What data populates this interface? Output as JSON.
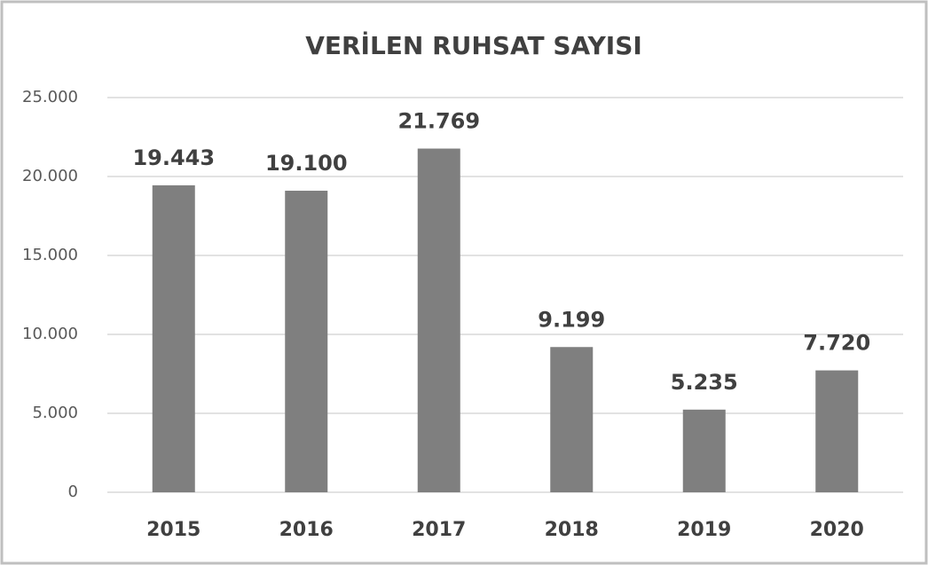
{
  "chart_data": {
    "type": "bar",
    "title": "VERİLEN RUHSAT SAYISI",
    "categories": [
      "2015",
      "2016",
      "2017",
      "2018",
      "2019",
      "2020"
    ],
    "values": [
      19443,
      19100,
      21769,
      9199,
      5235,
      7720
    ],
    "value_labels": [
      "19.443",
      "19.100",
      "21.769",
      "9.199",
      "5.235",
      "7.720"
    ],
    "color": "#7f7f7f",
    "ylim": [
      0,
      25000
    ],
    "yticks": [
      0,
      {
        "value": 5000,
        "label": "5.000"
      },
      {
        "value": 10000,
        "label": "10.000"
      },
      {
        "value": 15000,
        "label": "15.000"
      },
      {
        "value": 20000,
        "label": "20.000"
      },
      {
        "value": 25000,
        "label": "25.000"
      }
    ],
    "grid": true
  }
}
